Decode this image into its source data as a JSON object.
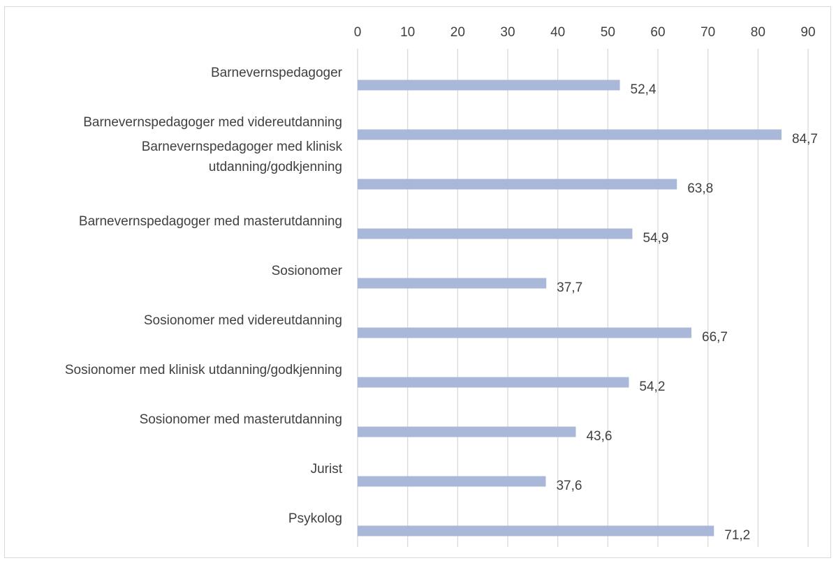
{
  "chart_data": {
    "type": "bar",
    "orientation": "horizontal",
    "categories": [
      [
        "Barnevernspedagoger"
      ],
      [
        "Barnevernspedagoger med videreutdanning"
      ],
      [
        "Barnevernspedagoger med klinisk",
        "utdanning/godkjenning"
      ],
      [
        "Barnevernspedagoger med masterutdanning"
      ],
      [
        "Sosionomer"
      ],
      [
        "Sosionomer med videreutdanning"
      ],
      [
        "Sosionomer med klinisk utdanning/godkjenning"
      ],
      [
        "Sosionomer med masterutdanning"
      ],
      [
        "Jurist"
      ],
      [
        "Psykolog"
      ]
    ],
    "values": [
      52.4,
      84.7,
      63.8,
      54.9,
      37.7,
      66.7,
      54.2,
      43.6,
      37.6,
      71.2
    ],
    "value_labels": [
      "52,4",
      "84,7",
      "63,8",
      "54,9",
      "37,7",
      "66,7",
      "54,2",
      "43,6",
      "37,6",
      "71,2"
    ],
    "ticks": [
      "0",
      "10",
      "20",
      "30",
      "40",
      "50",
      "60",
      "70",
      "80",
      "90"
    ],
    "xlim": [
      0,
      90
    ],
    "x_axis_position": "top",
    "grid": true,
    "legend": "none",
    "title": "",
    "xlabel": "",
    "ylabel": "",
    "colors": {
      "bar": "#a9b8d8",
      "grid": "#d9d9d9",
      "text": "#404040",
      "frame": "#d9d9d9"
    }
  }
}
